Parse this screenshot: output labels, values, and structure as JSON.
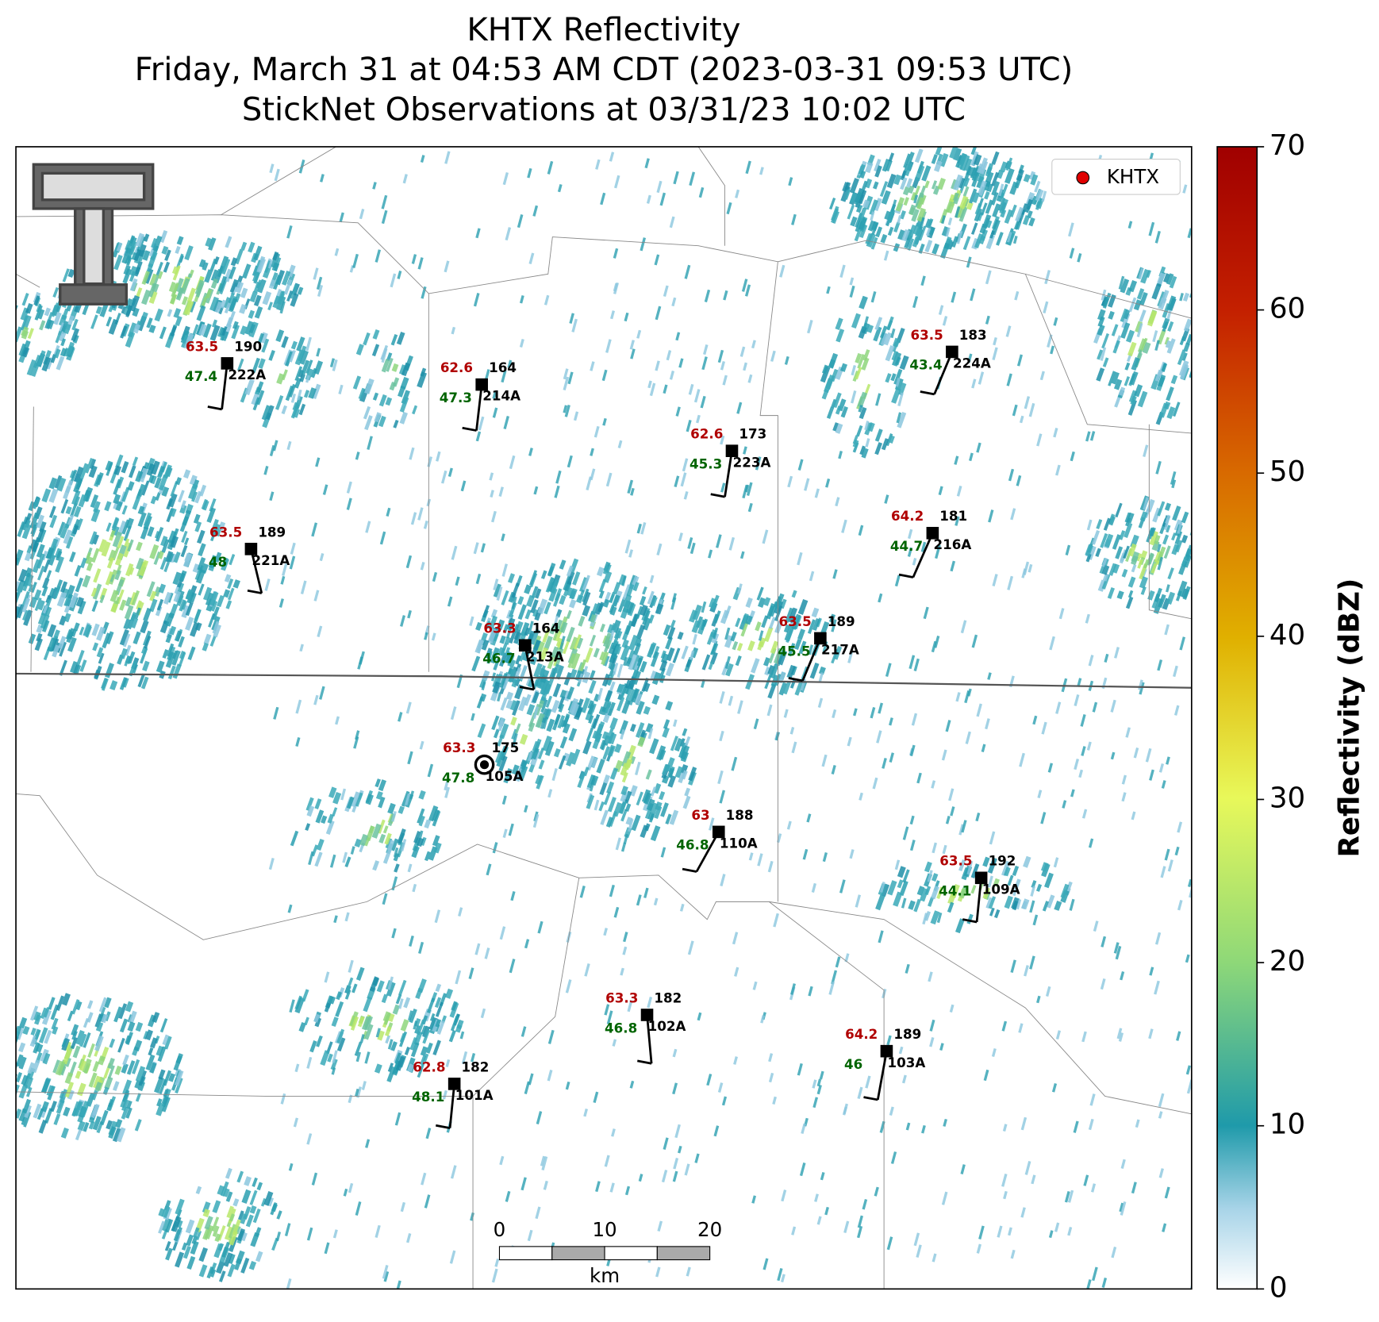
{
  "title": [
    "KHTX Reflectivity",
    "Friday, March 31 at 04:53 AM CDT (2023-03-31 09:53 UTC)",
    "StickNet Observations at 03/31/23 10:02 UTC"
  ],
  "legend": "KHTX",
  "colorbar": {
    "label": "Reflectivity (dBZ)",
    "lim": [
      0,
      70
    ],
    "ticks": [
      0,
      10,
      20,
      30,
      40,
      50,
      60,
      70
    ]
  },
  "scale_bar": {
    "ticks": [
      0,
      10,
      20
    ],
    "unit": "km"
  },
  "stations": [
    {
      "id": "222A",
      "temperature": 63.5,
      "dewpoint": 47.4,
      "value": 190
    },
    {
      "id": "214A",
      "temperature": 62.6,
      "dewpoint": 47.3,
      "value": 164
    },
    {
      "id": "223A",
      "temperature": 62.6,
      "dewpoint": 45.3,
      "value": 173
    },
    {
      "id": "224A",
      "temperature": 63.5,
      "dewpoint": 43.4,
      "value": 183
    },
    {
      "id": "221A",
      "temperature": 63.5,
      "dewpoint": 48.0,
      "value": 189
    },
    {
      "id": "216A",
      "temperature": 64.2,
      "dewpoint": 44.7,
      "value": 181
    },
    {
      "id": "213A",
      "temperature": 63.3,
      "dewpoint": 46.7,
      "value": 164
    },
    {
      "id": "217A",
      "temperature": 63.5,
      "dewpoint": 45.5,
      "value": 189
    },
    {
      "id": "105A",
      "temperature": 63.3,
      "dewpoint": 47.8,
      "value": 175
    },
    {
      "id": "110A",
      "temperature": 63.0,
      "dewpoint": 46.8,
      "value": 188
    },
    {
      "id": "109A",
      "temperature": 63.5,
      "dewpoint": 44.1,
      "value": 192
    },
    {
      "id": "102A",
      "temperature": 63.3,
      "dewpoint": 46.8,
      "value": 182
    },
    {
      "id": "103A",
      "temperature": 64.2,
      "dewpoint": 46.0,
      "value": 189
    },
    {
      "id": "101A",
      "temperature": 62.8,
      "dewpoint": 48.1,
      "value": 182
    }
  ]
}
